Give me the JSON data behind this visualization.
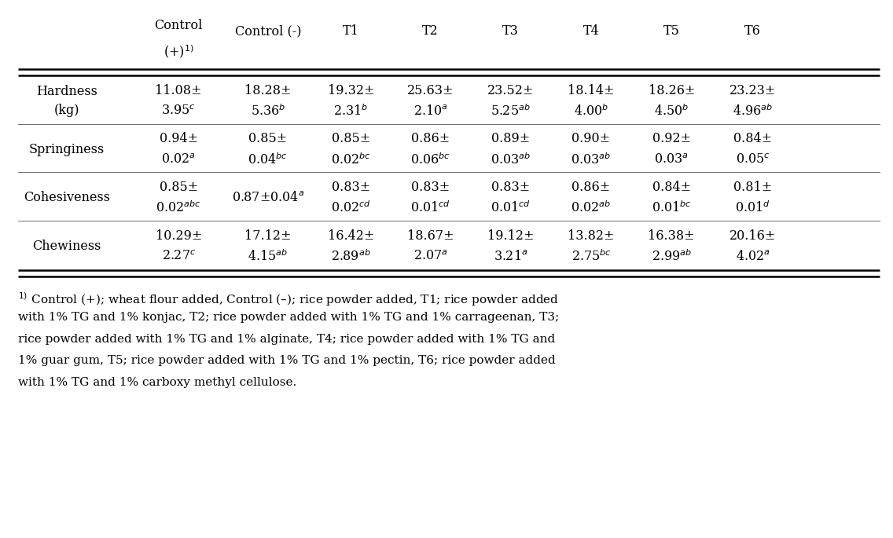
{
  "col_headers_line1": [
    "Control",
    "Control (-)",
    "T1",
    "T2",
    "T3",
    "T4",
    "T5",
    "T6"
  ],
  "col_headers_line2": [
    "(+)$^{1)}$",
    "",
    "",
    "",
    "",
    "",
    "",
    ""
  ],
  "row_labels": [
    "Hardness\n(kg)",
    "Springiness",
    "Cohesiveness",
    "Chewiness"
  ],
  "cell_data": {
    "Hardness": {
      "line1": [
        "11.08±",
        "18.28±",
        "19.32±",
        "25.63±",
        "23.52±",
        "18.14±",
        "18.26±",
        "23.23±"
      ],
      "line2": [
        "3.95$^{c}$",
        "5.36$^{b}$",
        "2.31$^{b}$",
        "2.10$^{a}$",
        "5.25$^{ab}$",
        "4.00$^{b}$",
        "4.50$^{b}$",
        "4.96$^{ab}$"
      ]
    },
    "Springiness": {
      "line1": [
        "0.94±",
        "0.85±",
        "0.85±",
        "0.86±",
        "0.89±",
        "0.90±",
        "0.92±",
        "0.84±"
      ],
      "line2": [
        "0.02$^{a}$",
        "0.04$^{bc}$",
        "0.02$^{bc}$",
        "0.06$^{bc}$",
        "0.03$^{ab}$",
        "0.03$^{ab}$",
        "0.03$^{a}$",
        "0.05$^{c}$"
      ]
    },
    "Cohesiveness": {
      "line1": [
        "0.85±",
        "0.87±0.04$^{a}$",
        "0.83±",
        "0.83±",
        "0.83±",
        "0.86±",
        "0.84±",
        "0.81±"
      ],
      "line2": [
        "0.02$^{abc}$",
        "",
        "0.02$^{cd}$",
        "0.01$^{cd}$",
        "0.01$^{cd}$",
        "0.02$^{ab}$",
        "0.01$^{bc}$",
        "0.01$^{d}$"
      ]
    },
    "Chewiness": {
      "line1": [
        "10.29±",
        "17.12±",
        "16.42±",
        "18.67±",
        "19.12±",
        "13.82±",
        "16.38±",
        "20.16±"
      ],
      "line2": [
        "2.27$^{c}$",
        "4.15$^{ab}$",
        "2.89$^{ab}$",
        "2.07$^{a}$",
        "3.21$^{a}$",
        "2.75$^{bc}$",
        "2.99$^{ab}$",
        "4.02$^{a}$"
      ]
    }
  },
  "footnote_line1": "$^{1)}$ Control (+); wheat flour added, Control (–); rice powder added, T1; rice powder added",
  "footnote_line2": "with 1% TG and 1% konjac, T2; rice powder added with 1% TG and 1% carrageenan, T3;",
  "footnote_line3": "rice powder added with 1% TG and 1% alginate, T4; rice powder added with 1% TG and",
  "footnote_line4": "1% guar gum, T5; rice powder added with 1% TG and 1% pectin, T6; rice powder added",
  "footnote_line5": "with 1% TG and 1% carboxy methyl cellulose.",
  "bg_color": "#ffffff",
  "text_color": "#000000",
  "font_size": 11.5,
  "footnote_font_size": 11.0
}
